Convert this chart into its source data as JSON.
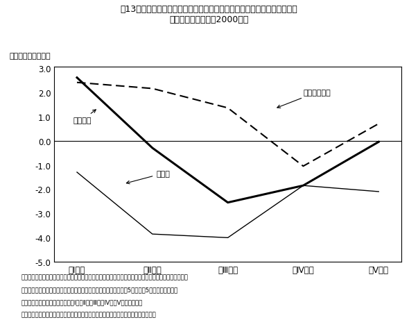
{
  "title_line1": "第13図　年間収入五分位階級別実収入、消費支出及び平均消費性向の動向",
  "title_line2": "（全国勤労者世帯、2000年）",
  "ylabel": "（％、％ポイント）",
  "categories": [
    "第Ⅰ階級",
    "第Ⅱ階級",
    "第Ⅲ階級",
    "第Ⅳ階級",
    "第Ⅴ階級"
  ],
  "line_shohi_shishutsu": [
    2.6,
    -0.3,
    -2.55,
    -1.85,
    -0.05
  ],
  "line_jisshu_nyu": [
    -1.3,
    -3.85,
    -4.0,
    -1.85,
    -2.1
  ],
  "line_heikin_shohi": [
    2.4,
    2.15,
    1.35,
    -1.05,
    0.7
  ],
  "ylim_min": -5.0,
  "ylim_max": 3.0,
  "yticks": [
    3.0,
    2.0,
    1.0,
    0.0,
    -1.0,
    -2.0,
    -3.0,
    -4.0,
    -5.0
  ],
  "label_shohi_shishutsu": "消費支出",
  "label_jisshu_nyu": "実収入",
  "label_heikin_shohi": "平均消費性向",
  "note_line1": "資料出所　総務省統計局「家計調査」「消費者物価指数」から厚生労働省労働政策担当参事官室にて推計",
  "note_line2": "（注）　各階級は世帯を年間収入の低い方から高い方へ順に並べて5等分した5つのグループで、",
  "note_line3": "　　　収入の低いグループから第Ⅰ、第Ⅱ、第Ⅲ、第Ⅳ、第Ⅴ階級と呼ぶ。",
  "note_line4": "　　　平均消費性向は前年差、消費支出は実質前年比、実収入は名目前年比である。",
  "background_color": "#ffffff"
}
